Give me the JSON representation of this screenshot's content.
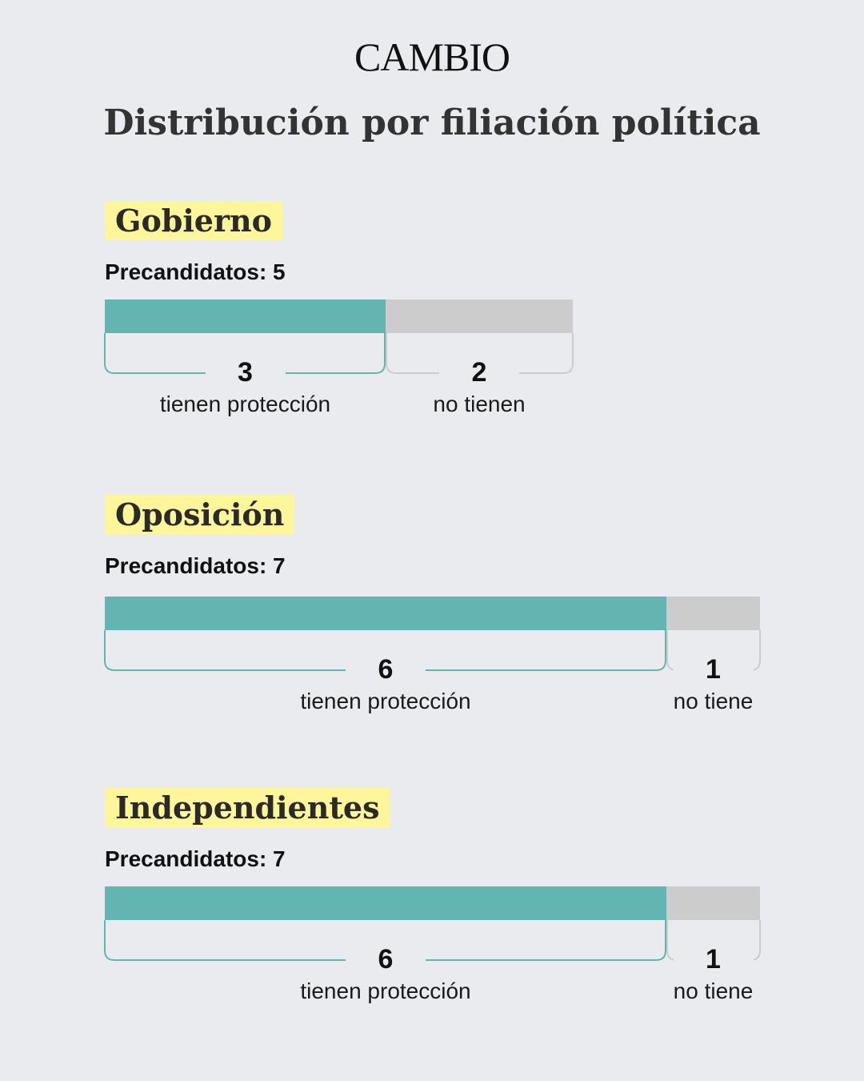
{
  "brand": "CAMBIO",
  "title": "Distribución por filiación política",
  "colors": {
    "protected": "#62B5B0",
    "unprotected": "#CCCCCC",
    "highlight": "#FFF59A",
    "background": "#EAEBEE"
  },
  "chart_data": {
    "type": "bar",
    "orientation": "horizontal-stacked",
    "title": "Distribución por filiación política",
    "series": [
      {
        "name": "tienen protección",
        "color": "#62B5B0"
      },
      {
        "name": "no tienen",
        "color": "#CCCCCC"
      }
    ],
    "groups": [
      {
        "name": "Gobierno",
        "count_label": "Precandidatos: 5",
        "total": 5,
        "scale_max": 5,
        "protected": 3,
        "unprotected": 2,
        "protected_label": "tienen protección",
        "unprotected_label": "no tienen"
      },
      {
        "name": "Oposición",
        "count_label": "Precandidatos: 7",
        "total": 7,
        "scale_max": 7,
        "protected": 6,
        "unprotected": 1,
        "protected_label": "tienen protección",
        "unprotected_label": "no tiene"
      },
      {
        "name": "Independientes",
        "count_label": "Precandidatos: 7",
        "total": 7,
        "scale_max": 7,
        "protected": 6,
        "unprotected": 1,
        "protected_label": "tienen protección",
        "unprotected_label": "no tiene"
      }
    ]
  }
}
